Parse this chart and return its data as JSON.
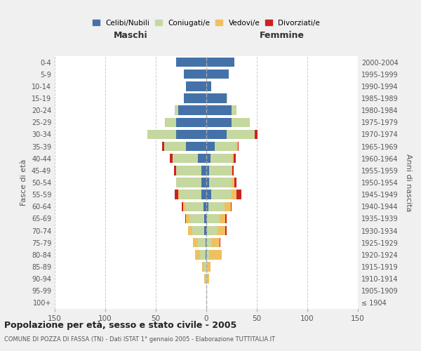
{
  "age_groups": [
    "100+",
    "95-99",
    "90-94",
    "85-89",
    "80-84",
    "75-79",
    "70-74",
    "65-69",
    "60-64",
    "55-59",
    "50-54",
    "45-49",
    "40-44",
    "35-39",
    "30-34",
    "25-29",
    "20-24",
    "15-19",
    "10-14",
    "5-9",
    "0-4"
  ],
  "birth_years": [
    "≤ 1904",
    "1905-1909",
    "1910-1914",
    "1915-1919",
    "1920-1924",
    "1925-1929",
    "1930-1934",
    "1935-1939",
    "1940-1944",
    "1945-1949",
    "1950-1954",
    "1955-1959",
    "1960-1964",
    "1965-1969",
    "1970-1974",
    "1975-1979",
    "1980-1984",
    "1985-1989",
    "1990-1994",
    "1995-1999",
    "2000-2004"
  ],
  "maschi": {
    "celibi": [
      0,
      0,
      0,
      0,
      1,
      1,
      2,
      2,
      3,
      5,
      5,
      5,
      8,
      20,
      30,
      30,
      28,
      22,
      20,
      22,
      30
    ],
    "coniugati": [
      0,
      0,
      1,
      2,
      5,
      7,
      12,
      15,
      18,
      22,
      25,
      25,
      25,
      22,
      28,
      10,
      3,
      0,
      0,
      0,
      0
    ],
    "vedovi": [
      0,
      0,
      1,
      2,
      5,
      5,
      4,
      3,
      2,
      1,
      0,
      0,
      0,
      0,
      0,
      1,
      0,
      0,
      0,
      0,
      0
    ],
    "divorziati": [
      0,
      0,
      0,
      0,
      0,
      0,
      0,
      1,
      1,
      3,
      0,
      2,
      3,
      2,
      0,
      0,
      0,
      0,
      0,
      0,
      0
    ]
  },
  "femmine": {
    "nubili": [
      0,
      0,
      0,
      0,
      0,
      0,
      1,
      1,
      2,
      5,
      3,
      3,
      4,
      8,
      20,
      25,
      25,
      20,
      5,
      22,
      28
    ],
    "coniugate": [
      0,
      0,
      1,
      1,
      3,
      5,
      10,
      12,
      16,
      20,
      22,
      22,
      22,
      22,
      28,
      18,
      5,
      1,
      0,
      0,
      0
    ],
    "vedove": [
      0,
      0,
      2,
      3,
      12,
      8,
      8,
      6,
      6,
      5,
      3,
      1,
      1,
      1,
      0,
      0,
      0,
      0,
      0,
      0,
      0
    ],
    "divorziate": [
      0,
      0,
      0,
      0,
      0,
      1,
      1,
      1,
      1,
      5,
      2,
      1,
      2,
      1,
      3,
      0,
      0,
      0,
      0,
      0,
      0
    ]
  },
  "colors": {
    "celibi_nubili": "#4472a8",
    "coniugati": "#c5d8a0",
    "vedovi": "#f0c060",
    "divorziati": "#cc2222"
  },
  "xlim": 150,
  "title": "Popolazione per età, sesso e stato civile - 2005",
  "subtitle": "COMUNE DI POZZA DI FASSA (TN) - Dati ISTAT 1° gennaio 2005 - Elaborazione TUTTITALIA.IT",
  "ylabel_left": "Fasce di età",
  "ylabel_right": "Anni di nascita",
  "legend_labels": [
    "Celibi/Nubili",
    "Coniugati/e",
    "Vedovi/e",
    "Divorziati/e"
  ],
  "maschi_label": "Maschi",
  "femmine_label": "Femmine",
  "bg_color": "#f0f0f0",
  "plot_bg": "#ffffff"
}
